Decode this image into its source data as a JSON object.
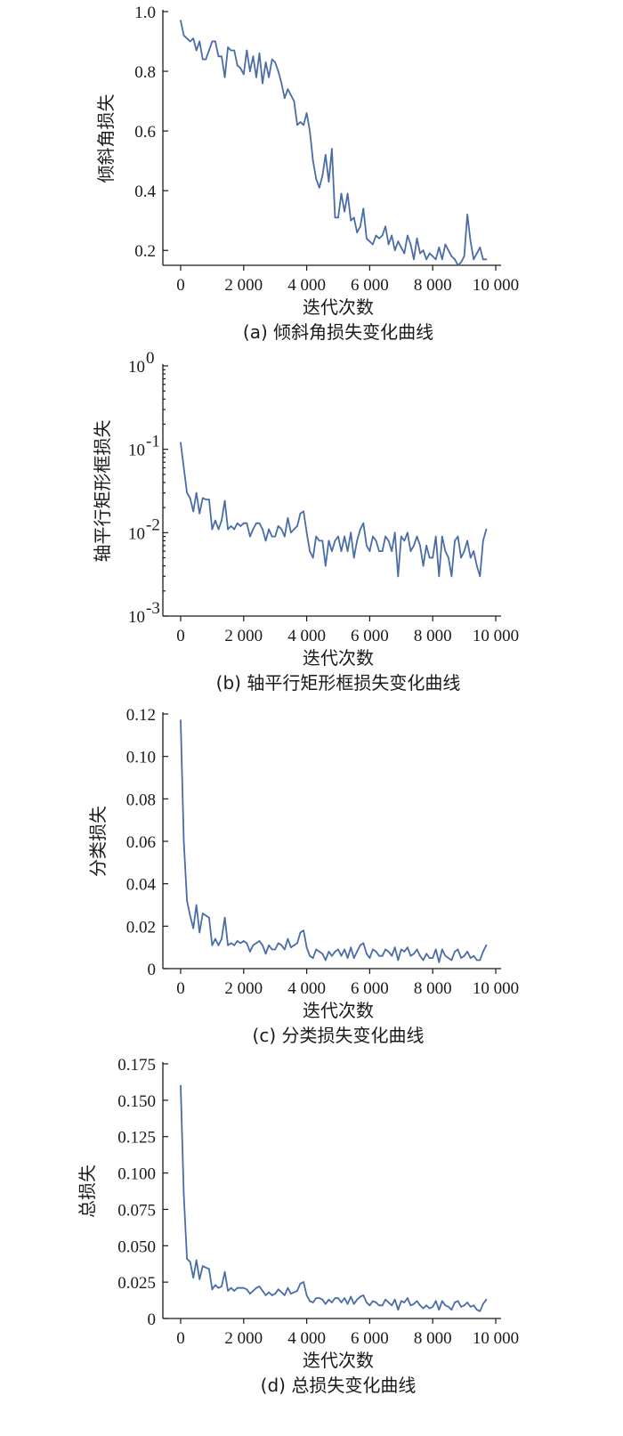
{
  "colors": {
    "series": "#4a6ca8",
    "axis": "#1a1a1a"
  },
  "chart_data": [
    {
      "id": "a",
      "type": "line",
      "caption": "(a)  倾斜角损失变化曲线",
      "xlabel": "迭代次数",
      "ylabel": "倾斜角损失",
      "yscale": "linear",
      "xlim": [
        0,
        10000
      ],
      "ylim": [
        0.15,
        1.0
      ],
      "xticks": [
        0,
        2000,
        4000,
        6000,
        8000,
        10000
      ],
      "xtick_labels": [
        "0",
        "2 000",
        "4 000",
        "6 000",
        "8 000",
        "10 000"
      ],
      "yticks": [
        0.2,
        0.4,
        0.6,
        0.8,
        1.0
      ],
      "ytick_labels": [
        "0.2",
        "0.4",
        "0.6",
        "0.8",
        "1.0"
      ],
      "grid": false,
      "series": [
        {
          "x": [
            0,
            100,
            200,
            300,
            400,
            500,
            600,
            700,
            800,
            900,
            1000,
            1100,
            1200,
            1300,
            1400,
            1500,
            1600,
            1700,
            1800,
            1900,
            2000,
            2100,
            2200,
            2300,
            2400,
            2500,
            2600,
            2700,
            2800,
            2900,
            3000,
            3100,
            3200,
            3300,
            3400,
            3500,
            3600,
            3700,
            3800,
            3900,
            4000,
            4100,
            4200,
            4300,
            4400,
            4500,
            4600,
            4700,
            4800,
            4900,
            5000,
            5100,
            5200,
            5300,
            5400,
            5500,
            5600,
            5700,
            5800,
            5900,
            6000,
            6100,
            6200,
            6300,
            6400,
            6500,
            6600,
            6700,
            6800,
            6900,
            7000,
            7100,
            7200,
            7300,
            7400,
            7500,
            7600,
            7700,
            7800,
            7900,
            8000,
            8100,
            8200,
            8300,
            8400,
            8500,
            8600,
            8700,
            8800,
            8900,
            9000,
            9100,
            9200,
            9300,
            9400,
            9500,
            9600,
            9700
          ],
          "y": [
            0.97,
            0.92,
            0.91,
            0.9,
            0.91,
            0.87,
            0.9,
            0.84,
            0.84,
            0.87,
            0.9,
            0.9,
            0.85,
            0.85,
            0.78,
            0.88,
            0.87,
            0.87,
            0.82,
            0.81,
            0.79,
            0.87,
            0.8,
            0.85,
            0.78,
            0.86,
            0.76,
            0.83,
            0.78,
            0.84,
            0.83,
            0.8,
            0.76,
            0.71,
            0.74,
            0.72,
            0.7,
            0.62,
            0.63,
            0.62,
            0.66,
            0.6,
            0.5,
            0.44,
            0.41,
            0.45,
            0.52,
            0.43,
            0.54,
            0.31,
            0.31,
            0.39,
            0.33,
            0.39,
            0.3,
            0.31,
            0.26,
            0.28,
            0.34,
            0.24,
            0.23,
            0.22,
            0.25,
            0.24,
            0.25,
            0.28,
            0.22,
            0.25,
            0.2,
            0.23,
            0.21,
            0.19,
            0.25,
            0.22,
            0.17,
            0.24,
            0.19,
            0.2,
            0.17,
            0.19,
            0.18,
            0.17,
            0.21,
            0.17,
            0.22,
            0.2,
            0.18,
            0.17,
            0.15,
            0.16,
            0.18,
            0.32,
            0.23,
            0.17,
            0.19,
            0.21,
            0.17,
            0.17
          ]
        }
      ]
    },
    {
      "id": "b",
      "type": "line",
      "caption": "(b)  轴平行矩形框损失变化曲线",
      "xlabel": "迭代次数",
      "ylabel": "轴平行矩形框损失",
      "yscale": "log",
      "xlim": [
        0,
        10000
      ],
      "ylim": [
        0.001,
        1
      ],
      "xticks": [
        0,
        2000,
        4000,
        6000,
        8000,
        10000
      ],
      "xtick_labels": [
        "0",
        "2 000",
        "4 000",
        "6 000",
        "8 000",
        "10 000"
      ],
      "yticks": [
        0.001,
        0.01,
        0.1,
        1
      ],
      "ytick_bases": [
        "10",
        "10",
        "10",
        "10"
      ],
      "ytick_exponents": [
        "-3",
        "-2",
        "-1",
        "0"
      ],
      "grid": false,
      "series": [
        {
          "x": [
            0,
            100,
            200,
            300,
            400,
            500,
            600,
            700,
            800,
            900,
            1000,
            1100,
            1200,
            1300,
            1400,
            1500,
            1600,
            1700,
            1800,
            1900,
            2000,
            2100,
            2200,
            2300,
            2400,
            2500,
            2600,
            2700,
            2800,
            2900,
            3000,
            3100,
            3200,
            3300,
            3400,
            3500,
            3600,
            3700,
            3800,
            3900,
            4000,
            4100,
            4200,
            4300,
            4400,
            4500,
            4600,
            4700,
            4800,
            4900,
            5000,
            5100,
            5200,
            5300,
            5400,
            5500,
            5600,
            5700,
            5800,
            5900,
            6000,
            6100,
            6200,
            6300,
            6400,
            6500,
            6600,
            6700,
            6800,
            6900,
            7000,
            7100,
            7200,
            7300,
            7400,
            7500,
            7600,
            7700,
            7800,
            7900,
            8000,
            8100,
            8200,
            8300,
            8400,
            8500,
            8600,
            8700,
            8800,
            8900,
            9000,
            9100,
            9200,
            9300,
            9400,
            9500,
            9600,
            9700
          ],
          "y": [
            0.12,
            0.06,
            0.03,
            0.026,
            0.018,
            0.03,
            0.017,
            0.026,
            0.025,
            0.025,
            0.011,
            0.014,
            0.011,
            0.014,
            0.024,
            0.011,
            0.012,
            0.011,
            0.013,
            0.012,
            0.013,
            0.013,
            0.009,
            0.011,
            0.013,
            0.013,
            0.011,
            0.008,
            0.011,
            0.009,
            0.009,
            0.012,
            0.011,
            0.009,
            0.015,
            0.01,
            0.011,
            0.012,
            0.017,
            0.018,
            0.01,
            0.006,
            0.005,
            0.009,
            0.008,
            0.008,
            0.004,
            0.008,
            0.006,
            0.008,
            0.009,
            0.006,
            0.009,
            0.006,
            0.01,
            0.005,
            0.008,
            0.011,
            0.013,
            0.007,
            0.006,
            0.009,
            0.008,
            0.006,
            0.006,
            0.009,
            0.008,
            0.006,
            0.01,
            0.003,
            0.009,
            0.008,
            0.01,
            0.006,
            0.007,
            0.009,
            0.007,
            0.004,
            0.007,
            0.005,
            0.005,
            0.009,
            0.003,
            0.009,
            0.006,
            0.005,
            0.003,
            0.008,
            0.009,
            0.005,
            0.006,
            0.008,
            0.005,
            0.006,
            0.004,
            0.003,
            0.008,
            0.011
          ]
        }
      ]
    },
    {
      "id": "c",
      "type": "line",
      "caption": "(c)  分类损失变化曲线",
      "xlabel": "迭代次数",
      "ylabel": "分类损失",
      "yscale": "linear",
      "xlim": [
        0,
        10000
      ],
      "ylim": [
        0,
        0.12
      ],
      "xticks": [
        0,
        2000,
        4000,
        6000,
        8000,
        10000
      ],
      "xtick_labels": [
        "0",
        "2 000",
        "4 000",
        "6 000",
        "8 000",
        "10 000"
      ],
      "yticks": [
        0,
        0.02,
        0.04,
        0.06,
        0.08,
        0.1,
        0.12
      ],
      "ytick_labels": [
        "0",
        "0.02",
        "0.04",
        "0.06",
        "0.08",
        "0.10",
        "0.12"
      ],
      "grid": false,
      "series": [
        {
          "x": [
            0,
            100,
            200,
            300,
            400,
            500,
            600,
            700,
            800,
            900,
            1000,
            1100,
            1200,
            1300,
            1400,
            1500,
            1600,
            1700,
            1800,
            1900,
            2000,
            2100,
            2200,
            2300,
            2400,
            2500,
            2600,
            2700,
            2800,
            2900,
            3000,
            3100,
            3200,
            3300,
            3400,
            3500,
            3600,
            3700,
            3800,
            3900,
            4000,
            4100,
            4200,
            4300,
            4400,
            4500,
            4600,
            4700,
            4800,
            4900,
            5000,
            5100,
            5200,
            5300,
            5400,
            5500,
            5600,
            5700,
            5800,
            5900,
            6000,
            6100,
            6200,
            6300,
            6400,
            6500,
            6600,
            6700,
            6800,
            6900,
            7000,
            7100,
            7200,
            7300,
            7400,
            7500,
            7600,
            7700,
            7800,
            7900,
            8000,
            8100,
            8200,
            8300,
            8400,
            8500,
            8600,
            8700,
            8800,
            8900,
            9000,
            9100,
            9200,
            9300,
            9400,
            9500,
            9600,
            9700
          ],
          "y": [
            0.117,
            0.06,
            0.032,
            0.025,
            0.019,
            0.03,
            0.017,
            0.026,
            0.025,
            0.024,
            0.011,
            0.014,
            0.011,
            0.014,
            0.024,
            0.011,
            0.012,
            0.011,
            0.013,
            0.012,
            0.013,
            0.012,
            0.008,
            0.011,
            0.012,
            0.013,
            0.011,
            0.007,
            0.011,
            0.009,
            0.009,
            0.012,
            0.011,
            0.009,
            0.014,
            0.01,
            0.011,
            0.012,
            0.017,
            0.018,
            0.01,
            0.006,
            0.005,
            0.009,
            0.008,
            0.007,
            0.004,
            0.008,
            0.006,
            0.008,
            0.009,
            0.006,
            0.009,
            0.005,
            0.01,
            0.005,
            0.008,
            0.011,
            0.012,
            0.007,
            0.005,
            0.009,
            0.008,
            0.006,
            0.006,
            0.009,
            0.008,
            0.006,
            0.01,
            0.004,
            0.009,
            0.008,
            0.01,
            0.006,
            0.007,
            0.009,
            0.006,
            0.004,
            0.007,
            0.005,
            0.005,
            0.009,
            0.003,
            0.009,
            0.006,
            0.005,
            0.004,
            0.008,
            0.009,
            0.005,
            0.006,
            0.008,
            0.005,
            0.006,
            0.004,
            0.004,
            0.008,
            0.011
          ]
        }
      ]
    },
    {
      "id": "d",
      "type": "line",
      "caption": "(d)  总损失变化曲线",
      "xlabel": "迭代次数",
      "ylabel": "总损失",
      "yscale": "linear",
      "xlim": [
        0,
        10000
      ],
      "ylim": [
        0,
        0.175
      ],
      "xticks": [
        0,
        2000,
        4000,
        6000,
        8000,
        10000
      ],
      "xtick_labels": [
        "0",
        "2 000",
        "4 000",
        "6 000",
        "8 000",
        "10 000"
      ],
      "yticks": [
        0,
        0.025,
        0.05,
        0.075,
        0.1,
        0.125,
        0.15,
        0.175
      ],
      "ytick_labels": [
        "0",
        "0.025",
        "0.050",
        "0.075",
        "0.100",
        "0.125",
        "0.150",
        "0.175"
      ],
      "grid": false,
      "series": [
        {
          "x": [
            0,
            100,
            200,
            300,
            400,
            500,
            600,
            700,
            800,
            900,
            1000,
            1100,
            1200,
            1300,
            1400,
            1500,
            1600,
            1700,
            1800,
            1900,
            2000,
            2100,
            2200,
            2300,
            2400,
            2500,
            2600,
            2700,
            2800,
            2900,
            3000,
            3100,
            3200,
            3300,
            3400,
            3500,
            3600,
            3700,
            3800,
            3900,
            4000,
            4100,
            4200,
            4300,
            4400,
            4500,
            4600,
            4700,
            4800,
            4900,
            5000,
            5100,
            5200,
            5300,
            5400,
            5500,
            5600,
            5700,
            5800,
            5900,
            6000,
            6100,
            6200,
            6300,
            6400,
            6500,
            6600,
            6700,
            6800,
            6900,
            7000,
            7100,
            7200,
            7300,
            7400,
            7500,
            7600,
            7700,
            7800,
            7900,
            8000,
            8100,
            8200,
            8300,
            8400,
            8500,
            8600,
            8700,
            8800,
            8900,
            9000,
            9100,
            9200,
            9300,
            9400,
            9500,
            9600,
            9700
          ],
          "y": [
            0.16,
            0.085,
            0.041,
            0.039,
            0.028,
            0.04,
            0.027,
            0.036,
            0.035,
            0.034,
            0.02,
            0.023,
            0.021,
            0.022,
            0.032,
            0.019,
            0.021,
            0.019,
            0.021,
            0.021,
            0.021,
            0.02,
            0.017,
            0.019,
            0.021,
            0.022,
            0.019,
            0.016,
            0.018,
            0.016,
            0.017,
            0.02,
            0.018,
            0.016,
            0.021,
            0.017,
            0.018,
            0.019,
            0.024,
            0.025,
            0.016,
            0.012,
            0.011,
            0.014,
            0.014,
            0.013,
            0.01,
            0.013,
            0.011,
            0.014,
            0.014,
            0.011,
            0.014,
            0.01,
            0.015,
            0.01,
            0.013,
            0.015,
            0.016,
            0.011,
            0.009,
            0.012,
            0.011,
            0.009,
            0.009,
            0.013,
            0.011,
            0.009,
            0.013,
            0.006,
            0.012,
            0.011,
            0.014,
            0.009,
            0.01,
            0.012,
            0.009,
            0.007,
            0.009,
            0.007,
            0.008,
            0.012,
            0.006,
            0.012,
            0.009,
            0.008,
            0.006,
            0.011,
            0.012,
            0.008,
            0.009,
            0.011,
            0.008,
            0.009,
            0.006,
            0.005,
            0.01,
            0.013
          ]
        }
      ]
    }
  ]
}
